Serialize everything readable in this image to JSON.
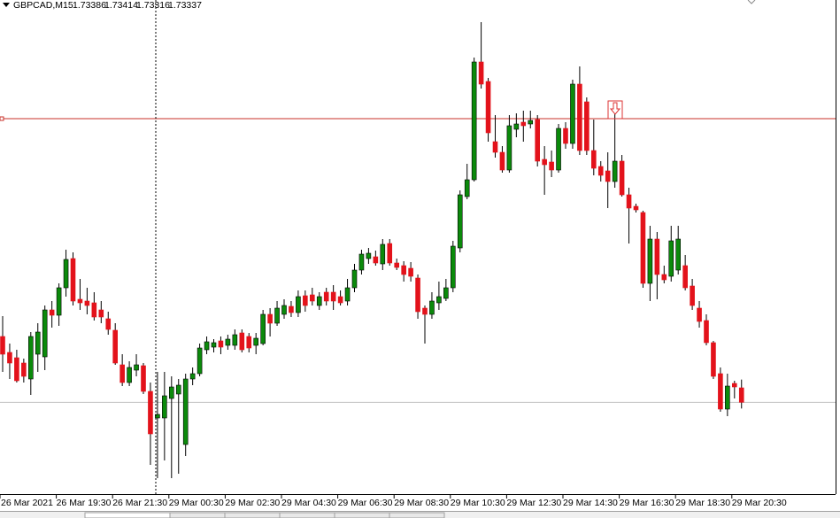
{
  "chart_data": {
    "type": "candlestick",
    "title": "GBPCAD,M15",
    "categories": [
      "26 Mar 2021",
      null,
      null,
      null,
      null,
      null,
      null,
      null,
      "26 Mar 19:30",
      null,
      null,
      null,
      null,
      null,
      null,
      null,
      "26 Mar 21:30",
      null,
      null,
      null,
      null,
      null,
      null,
      null,
      "29 Mar 00:30",
      null,
      null,
      null,
      null,
      null,
      null,
      null,
      "29 Mar 02:30",
      null,
      null,
      null,
      null,
      null,
      null,
      null,
      "29 Mar 04:30",
      null,
      null,
      null,
      null,
      null,
      null,
      null,
      "29 Mar 06:30",
      null,
      null,
      null,
      null,
      null,
      null,
      null,
      "29 Mar 08:30",
      null,
      null,
      null,
      null,
      null,
      null,
      null,
      "29 Mar 10:30",
      null,
      null,
      null,
      null,
      null,
      null,
      null,
      "29 Mar 12:30",
      null,
      null,
      null,
      null,
      null,
      null,
      null,
      "29 Mar 14:30",
      null,
      null,
      null,
      null,
      null,
      null,
      null,
      "29 Mar 16:30",
      null,
      null,
      null,
      null,
      null,
      null,
      null,
      "29 Mar 18:30",
      null,
      null,
      null,
      null,
      null,
      null,
      null,
      "29 Mar 20:30",
      null
    ],
    "open": [
      1.7356,
      1.73506,
      1.73488,
      1.7347,
      1.73416,
      1.735,
      1.73491,
      1.7365,
      1.73632,
      1.73725,
      1.73824,
      1.73686,
      1.7368,
      1.73674,
      1.7365,
      1.7362,
      1.73581,
      1.73464,
      1.73404,
      1.73446,
      1.73461,
      1.73374,
      1.73284,
      1.73284,
      1.7335,
      1.73365,
      1.73194,
      1.73416,
      1.73434,
      1.73515,
      1.73524,
      1.73545,
      1.7353,
      1.7353,
      1.73572,
      1.7356,
      1.7353,
      1.73536,
      1.73635,
      1.73605,
      1.73635,
      1.73662,
      1.73641,
      1.73698,
      1.73701,
      1.73665,
      1.7371,
      1.7371,
      1.73695,
      1.7368,
      1.73725,
      1.73785,
      1.73824,
      1.7383,
      1.73806,
      1.73875,
      1.73809,
      1.738,
      1.73791,
      1.73758,
      1.73656,
      1.73635,
      1.73674,
      1.73689,
      1.73725,
      1.7386,
      1.74034,
      1.74091,
      1.7449,
      1.74424,
      1.7422,
      1.74184,
      1.74124,
      1.74262,
      1.74286,
      1.7428,
      1.74295,
      1.7416,
      1.74151,
      1.74124,
      1.74265,
      1.74214,
      1.74415,
      1.74355,
      1.7419,
      1.74136,
      1.74121,
      1.74085,
      1.74154,
      1.7404,
      1.74001,
      1.7398,
      1.7374,
      1.7389,
      1.7377,
      1.73764,
      1.73785,
      1.738,
      1.73731,
      1.73656,
      1.73614,
      1.73539,
      1.73434,
      1.73314,
      1.73401,
      1.73386
    ],
    "high": [
      1.73629,
      1.73536,
      1.73515,
      1.73485,
      1.73575,
      1.73605,
      1.73665,
      1.7368,
      1.7374,
      1.73854,
      1.73845,
      1.73755,
      1.73725,
      1.7371,
      1.7368,
      1.73644,
      1.73605,
      1.735,
      1.73476,
      1.735,
      1.7347,
      1.73404,
      1.7344,
      1.7344,
      1.73425,
      1.73416,
      1.73434,
      1.73455,
      1.73536,
      1.7356,
      1.73551,
      1.7356,
      1.73566,
      1.73584,
      1.73584,
      1.73572,
      1.73572,
      1.7365,
      1.73656,
      1.7368,
      1.73686,
      1.7368,
      1.73716,
      1.73716,
      1.73725,
      1.7371,
      1.73725,
      1.73734,
      1.73716,
      1.73755,
      1.73806,
      1.73854,
      1.7386,
      1.73851,
      1.7389,
      1.7389,
      1.73824,
      1.73815,
      1.73812,
      1.7377,
      1.73665,
      1.7371,
      1.73746,
      1.73755,
      1.73884,
      1.74055,
      1.74145,
      1.74505,
      1.74625,
      1.74436,
      1.7431,
      1.74205,
      1.7431,
      1.74316,
      1.74325,
      1.74325,
      1.7431,
      1.74205,
      1.7419,
      1.7428,
      1.74286,
      1.7443,
      1.74475,
      1.7437,
      1.74295,
      1.74154,
      1.74184,
      1.7434,
      1.74175,
      1.74064,
      1.7401,
      1.73986,
      1.73935,
      1.73914,
      1.738,
      1.73935,
      1.73935,
      1.73836,
      1.73755,
      1.7368,
      1.73635,
      1.73545,
      1.73455,
      1.73434,
      1.7341,
      1.73414
    ],
    "low": [
      1.7344,
      1.73416,
      1.73404,
      1.73404,
      1.73362,
      1.7344,
      1.73446,
      1.7359,
      1.73596,
      1.73695,
      1.73665,
      1.7365,
      1.73635,
      1.73614,
      1.73605,
      1.73566,
      1.73464,
      1.73392,
      1.73392,
      1.73425,
      1.73365,
      1.73125,
      1.7308,
      1.7314,
      1.7308,
      1.73095,
      1.73155,
      1.73395,
      1.73425,
      1.735,
      1.73506,
      1.735,
      1.73515,
      1.73515,
      1.73506,
      1.73506,
      1.735,
      1.7353,
      1.7356,
      1.73596,
      1.7362,
      1.73626,
      1.73626,
      1.73644,
      1.73665,
      1.7365,
      1.73665,
      1.7365,
      1.73665,
      1.73665,
      1.7371,
      1.7377,
      1.73806,
      1.738,
      1.73785,
      1.738,
      1.73785,
      1.73746,
      1.73746,
      1.7362,
      1.73536,
      1.7362,
      1.7365,
      1.7368,
      1.7371,
      1.73845,
      1.74025,
      1.74085,
      1.744,
      1.7422,
      1.74166,
      1.74115,
      1.74115,
      1.74235,
      1.7422,
      1.74265,
      1.74136,
      1.7404,
      1.741,
      1.74115,
      1.74196,
      1.74196,
      1.74175,
      1.74175,
      1.74106,
      1.74085,
      1.73995,
      1.74064,
      1.74034,
      1.73875,
      1.7398,
      1.73725,
      1.7368,
      1.73686,
      1.7374,
      1.73746,
      1.7377,
      1.73716,
      1.7365,
      1.7359,
      1.7353,
      1.73416,
      1.73305,
      1.7329,
      1.7335,
      1.73316
    ],
    "close": [
      1.735,
      1.7347,
      1.7341,
      1.73425,
      1.7356,
      1.73575,
      1.7365,
      1.73632,
      1.73725,
      1.73821,
      1.7368,
      1.73674,
      1.73665,
      1.73626,
      1.73626,
      1.73584,
      1.7347,
      1.73404,
      1.73455,
      1.73464,
      1.73374,
      1.7323,
      1.73296,
      1.73359,
      1.73389,
      1.73395,
      1.73416,
      1.73434,
      1.73521,
      1.73542,
      1.73539,
      1.73524,
      1.73551,
      1.73566,
      1.73515,
      1.73521,
      1.73554,
      1.73635,
      1.73605,
      1.73656,
      1.73665,
      1.73641,
      1.73695,
      1.73665,
      1.7368,
      1.73695,
      1.7368,
      1.7368,
      1.73674,
      1.73725,
      1.73785,
      1.73839,
      1.73842,
      1.73809,
      1.73872,
      1.73809,
      1.73794,
      1.7377,
      1.73764,
      1.73644,
      1.73635,
      1.7368,
      1.73695,
      1.73725,
      1.73866,
      1.7404,
      1.74091,
      1.7449,
      1.74415,
      1.7425,
      1.74184,
      1.74124,
      1.74274,
      1.7428,
      1.74274,
      1.74292,
      1.74154,
      1.74142,
      1.74124,
      1.74265,
      1.74214,
      1.74415,
      1.7419,
      1.7419,
      1.7413,
      1.74106,
      1.74085,
      1.74154,
      1.7404,
      1.73995,
      1.73989,
      1.7374,
      1.7389,
      1.7377,
      1.73752,
      1.73884,
      1.7389,
      1.73725,
      1.73665,
      1.73611,
      1.73539,
      1.73425,
      1.73314,
      1.73392,
      1.73389,
      1.73337
    ],
    "up_color": "#0b8a0b",
    "down_color": "#e3121b",
    "level_line": 1.74298,
    "level_color": "#c8302a",
    "ylim": [
      1.73026,
      1.747
    ]
  }
}
